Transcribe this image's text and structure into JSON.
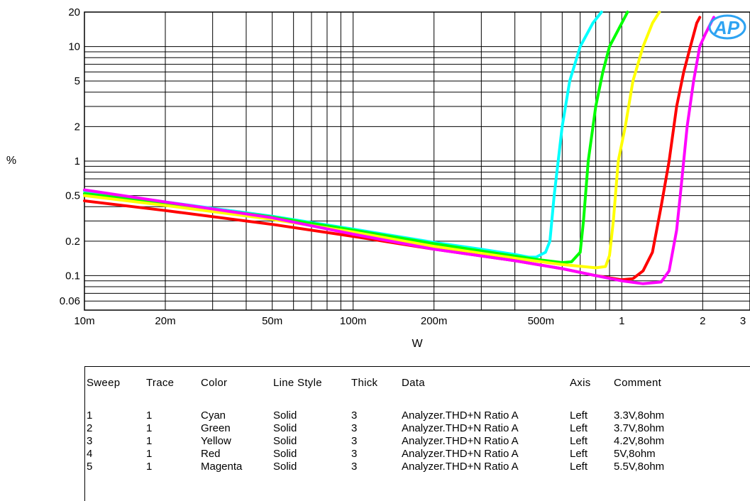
{
  "chart_data": {
    "type": "line",
    "xlabel": "W",
    "ylabel": "%",
    "xscale": "log",
    "yscale": "log",
    "xlim": [
      0.01,
      3
    ],
    "ylim": [
      0.05,
      20
    ],
    "grid": true,
    "x_ticks": [
      {
        "value": 0.01,
        "label": "10m"
      },
      {
        "value": 0.02,
        "label": "20m"
      },
      {
        "value": 0.05,
        "label": "50m"
      },
      {
        "value": 0.1,
        "label": "100m"
      },
      {
        "value": 0.2,
        "label": "200m"
      },
      {
        "value": 0.5,
        "label": "500m"
      },
      {
        "value": 1,
        "label": "1"
      },
      {
        "value": 2,
        "label": "2"
      },
      {
        "value": 3,
        "label": "3"
      }
    ],
    "y_ticks": [
      {
        "value": 20,
        "label": "20"
      },
      {
        "value": 10,
        "label": "10"
      },
      {
        "value": 5,
        "label": "5"
      },
      {
        "value": 2,
        "label": "2"
      },
      {
        "value": 1,
        "label": "1"
      },
      {
        "value": 0.5,
        "label": "0.5"
      },
      {
        "value": 0.2,
        "label": "0.2"
      },
      {
        "value": 0.1,
        "label": "0.1"
      },
      {
        "value": 0.06,
        "label": "0.06"
      }
    ],
    "series": [
      {
        "color": "#00ffff",
        "points": [
          [
            0.01,
            0.55
          ],
          [
            0.02,
            0.44
          ],
          [
            0.05,
            0.33
          ],
          [
            0.1,
            0.255
          ],
          [
            0.2,
            0.195
          ],
          [
            0.3,
            0.17
          ],
          [
            0.4,
            0.153
          ],
          [
            0.45,
            0.145
          ],
          [
            0.48,
            0.145
          ],
          [
            0.52,
            0.16
          ],
          [
            0.54,
            0.2
          ],
          [
            0.56,
            0.5
          ],
          [
            0.6,
            2.0
          ],
          [
            0.64,
            5.0
          ],
          [
            0.7,
            10
          ],
          [
            0.78,
            16
          ],
          [
            0.84,
            20
          ]
        ]
      },
      {
        "color": "#00ff00",
        "points": [
          [
            0.01,
            0.52
          ],
          [
            0.02,
            0.43
          ],
          [
            0.05,
            0.325
          ],
          [
            0.1,
            0.25
          ],
          [
            0.2,
            0.19
          ],
          [
            0.4,
            0.148
          ],
          [
            0.5,
            0.137
          ],
          [
            0.6,
            0.13
          ],
          [
            0.65,
            0.132
          ],
          [
            0.7,
            0.16
          ],
          [
            0.72,
            0.3
          ],
          [
            0.75,
            1.0
          ],
          [
            0.8,
            3.0
          ],
          [
            0.85,
            6.0
          ],
          [
            0.9,
            10
          ],
          [
            1.0,
            16
          ],
          [
            1.05,
            20
          ]
        ]
      },
      {
        "color": "#ffff00",
        "points": [
          [
            0.01,
            0.5
          ],
          [
            0.02,
            0.41
          ],
          [
            0.05,
            0.31
          ],
          [
            0.1,
            0.24
          ],
          [
            0.2,
            0.18
          ],
          [
            0.4,
            0.142
          ],
          [
            0.6,
            0.125
          ],
          [
            0.8,
            0.117
          ],
          [
            0.87,
            0.12
          ],
          [
            0.9,
            0.15
          ],
          [
            0.93,
            0.3
          ],
          [
            0.97,
            1.0
          ],
          [
            1.03,
            2.0
          ],
          [
            1.1,
            5.0
          ],
          [
            1.2,
            10
          ],
          [
            1.3,
            16
          ],
          [
            1.38,
            20
          ]
        ]
      },
      {
        "color": "#ff0000",
        "points": [
          [
            0.01,
            0.45
          ],
          [
            0.02,
            0.37
          ],
          [
            0.05,
            0.28
          ],
          [
            0.1,
            0.22
          ],
          [
            0.2,
            0.17
          ],
          [
            0.4,
            0.135
          ],
          [
            0.6,
            0.115
          ],
          [
            0.8,
            0.1
          ],
          [
            1.0,
            0.092
          ],
          [
            1.1,
            0.094
          ],
          [
            1.2,
            0.11
          ],
          [
            1.3,
            0.16
          ],
          [
            1.4,
            0.4
          ],
          [
            1.5,
            1.0
          ],
          [
            1.6,
            3.0
          ],
          [
            1.7,
            6.0
          ],
          [
            1.8,
            10
          ],
          [
            1.9,
            16
          ],
          [
            1.95,
            18
          ]
        ]
      },
      {
        "color": "#ff00ff",
        "points": [
          [
            0.01,
            0.56
          ],
          [
            0.02,
            0.44
          ],
          [
            0.05,
            0.32
          ],
          [
            0.1,
            0.23
          ],
          [
            0.2,
            0.17
          ],
          [
            0.4,
            0.135
          ],
          [
            0.6,
            0.115
          ],
          [
            0.8,
            0.1
          ],
          [
            1.0,
            0.09
          ],
          [
            1.2,
            0.085
          ],
          [
            1.4,
            0.088
          ],
          [
            1.5,
            0.11
          ],
          [
            1.6,
            0.25
          ],
          [
            1.65,
            0.5
          ],
          [
            1.75,
            2.0
          ],
          [
            1.85,
            5.0
          ],
          [
            1.95,
            10
          ],
          [
            2.05,
            13
          ],
          [
            2.2,
            18
          ]
        ]
      }
    ]
  },
  "logo": {
    "text": "AP",
    "color": "#2ea3f2"
  },
  "table": {
    "headers": [
      "Sweep",
      "Trace",
      "Color",
      "Line Style",
      "Thick",
      "Data",
      "Axis",
      "Comment"
    ],
    "rows": [
      [
        "1",
        "1",
        "Cyan",
        "Solid",
        "3",
        "Analyzer.THD+N Ratio A",
        "Left",
        "3.3V,8ohm"
      ],
      [
        "2",
        "1",
        "Green",
        "Solid",
        "3",
        "Analyzer.THD+N Ratio A",
        "Left",
        "3.7V,8ohm"
      ],
      [
        "3",
        "1",
        "Yellow",
        "Solid",
        "3",
        "Analyzer.THD+N Ratio A",
        "Left",
        "4.2V,8ohm"
      ],
      [
        "4",
        "1",
        "Red",
        "Solid",
        "3",
        "Analyzer.THD+N Ratio A",
        "Left",
        "5V,8ohm"
      ],
      [
        "5",
        "1",
        "Magenta",
        "Solid",
        "3",
        "Analyzer.THD+N Ratio A",
        "Left",
        "5.5V,8ohm"
      ]
    ]
  }
}
